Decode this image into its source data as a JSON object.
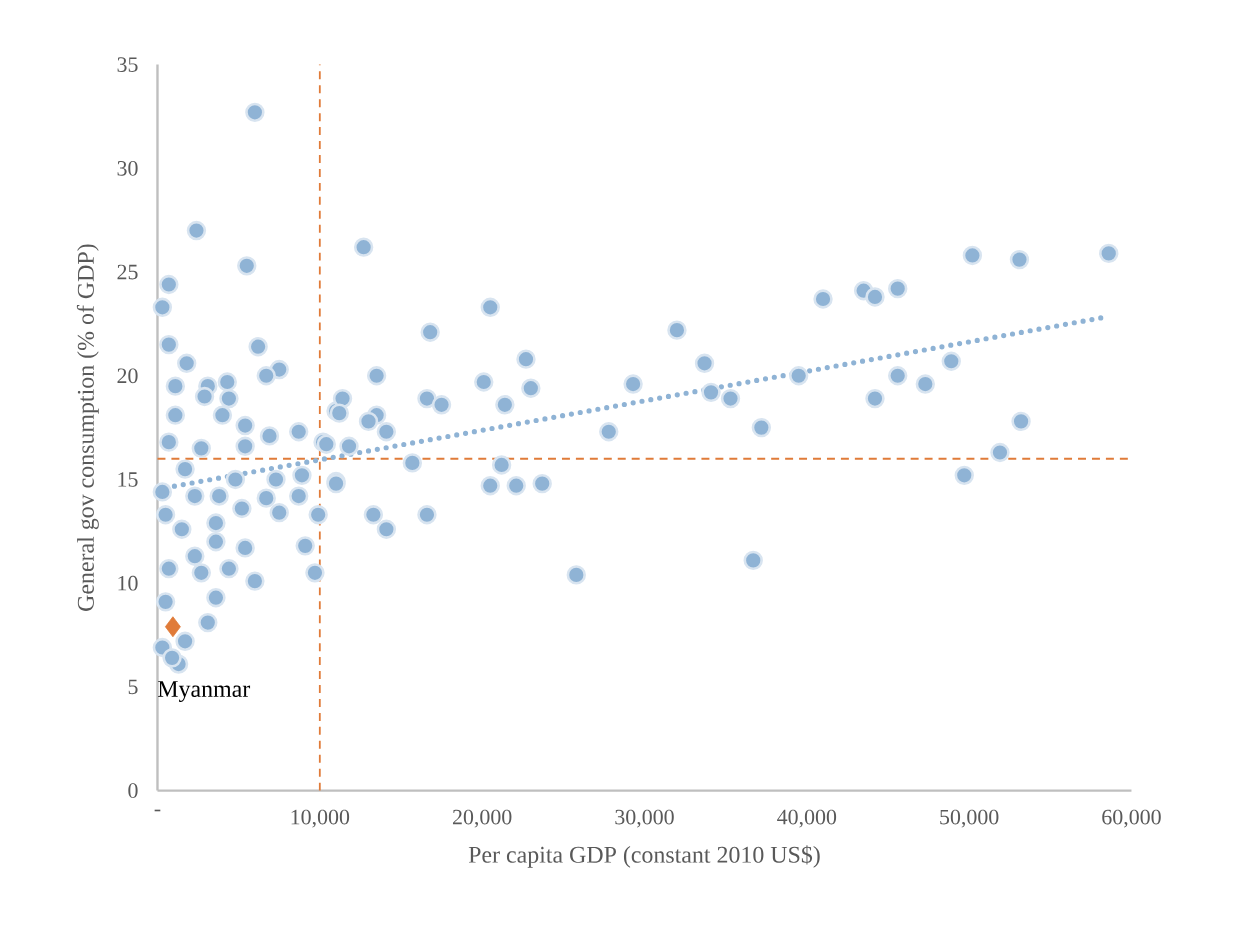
{
  "chart_data": {
    "type": "scatter",
    "xlabel": "Per capita GDP (constant 2010 US$)",
    "ylabel": "General gov consumption (% of GDP)",
    "xlim": [
      0,
      60000
    ],
    "ylim": [
      0,
      35
    ],
    "xticks": [
      {
        "value": 0,
        "label": "-"
      },
      {
        "value": 10000,
        "label": "10,000"
      },
      {
        "value": 20000,
        "label": "20,000"
      },
      {
        "value": 30000,
        "label": "30,000"
      },
      {
        "value": 40000,
        "label": "40,000"
      },
      {
        "value": 50000,
        "label": "50,000"
      },
      {
        "value": 60000,
        "label": "60,000"
      }
    ],
    "yticks": [
      0,
      5,
      10,
      15,
      20,
      25,
      30,
      35
    ],
    "ref_lines": [
      {
        "axis": "x",
        "value": 10000,
        "color": "#e07b39",
        "line_style": "dashed"
      },
      {
        "axis": "y",
        "value": 16,
        "color": "#e07b39",
        "line_style": "dashed"
      }
    ],
    "series": [
      {
        "color": "#8fb3d5",
        "marker": "circle",
        "x": [
          6000,
          2400,
          5500,
          700,
          300,
          700,
          1800,
          6200,
          7500,
          6700,
          3100,
          4300,
          1100,
          2900,
          4400,
          1100,
          4000,
          5400,
          8700,
          11000,
          700,
          2700,
          5400,
          6900,
          10200,
          1700,
          4800,
          7300,
          8900,
          11000,
          300,
          2300,
          3800,
          6700,
          8700,
          5200,
          7500,
          9900,
          500,
          1500,
          3600,
          3600,
          5400,
          9100,
          2300,
          700,
          2700,
          4400,
          6000,
          9700,
          500,
          3600,
          3100,
          1700,
          1300,
          300,
          900,
          12700,
          20500,
          16800,
          32000,
          33700,
          13500,
          22700,
          20100,
          29300,
          34100,
          35300,
          23000,
          11400,
          11200,
          16600,
          17500,
          21400,
          13500,
          13000,
          14100,
          27800,
          37200,
          10400,
          11800,
          15700,
          21200,
          11000,
          20500,
          22100,
          23700,
          13300,
          14100,
          16600,
          25800,
          36700,
          50200,
          53100,
          58600,
          41000,
          43500,
          44200,
          45600,
          39500,
          45600,
          47300,
          48900,
          44200,
          53200,
          51900,
          49700
        ],
        "values": [
          32.7,
          27.0,
          25.3,
          24.4,
          23.3,
          21.5,
          20.6,
          21.4,
          20.3,
          20.0,
          19.5,
          19.7,
          19.5,
          19.0,
          18.9,
          18.1,
          18.1,
          17.6,
          17.3,
          18.3,
          16.8,
          16.5,
          16.6,
          17.1,
          16.8,
          15.5,
          15.0,
          15.0,
          15.2,
          14.9,
          14.4,
          14.2,
          14.2,
          14.1,
          14.2,
          13.6,
          13.4,
          13.3,
          13.3,
          12.6,
          12.9,
          12.0,
          11.7,
          11.8,
          11.3,
          10.7,
          10.5,
          10.7,
          10.1,
          10.5,
          9.1,
          9.3,
          8.1,
          7.2,
          6.1,
          6.9,
          6.4,
          26.2,
          23.3,
          22.1,
          22.2,
          20.6,
          20.0,
          20.8,
          19.7,
          19.6,
          19.2,
          18.9,
          19.4,
          18.9,
          18.2,
          18.9,
          18.6,
          18.6,
          18.1,
          17.8,
          17.3,
          17.3,
          17.5,
          16.7,
          16.6,
          15.8,
          15.7,
          14.8,
          14.7,
          14.7,
          14.8,
          13.3,
          12.6,
          13.3,
          10.4,
          11.1,
          25.8,
          25.6,
          25.9,
          23.7,
          24.1,
          23.8,
          24.2,
          20.0,
          20.0,
          19.6,
          20.7,
          18.9,
          17.8,
          16.3,
          15.2
        ]
      },
      {
        "type": "line",
        "color": "#8fb3d5",
        "marker": "none",
        "line_style": "dotted",
        "x": [
          500,
          58200
        ],
        "values": [
          14.6,
          22.8
        ]
      },
      {
        "type": "scatter",
        "name": "Myanmar",
        "color": "#e07b39",
        "marker": "diamond",
        "x": [
          950
        ],
        "values": [
          7.9
        ]
      }
    ]
  }
}
